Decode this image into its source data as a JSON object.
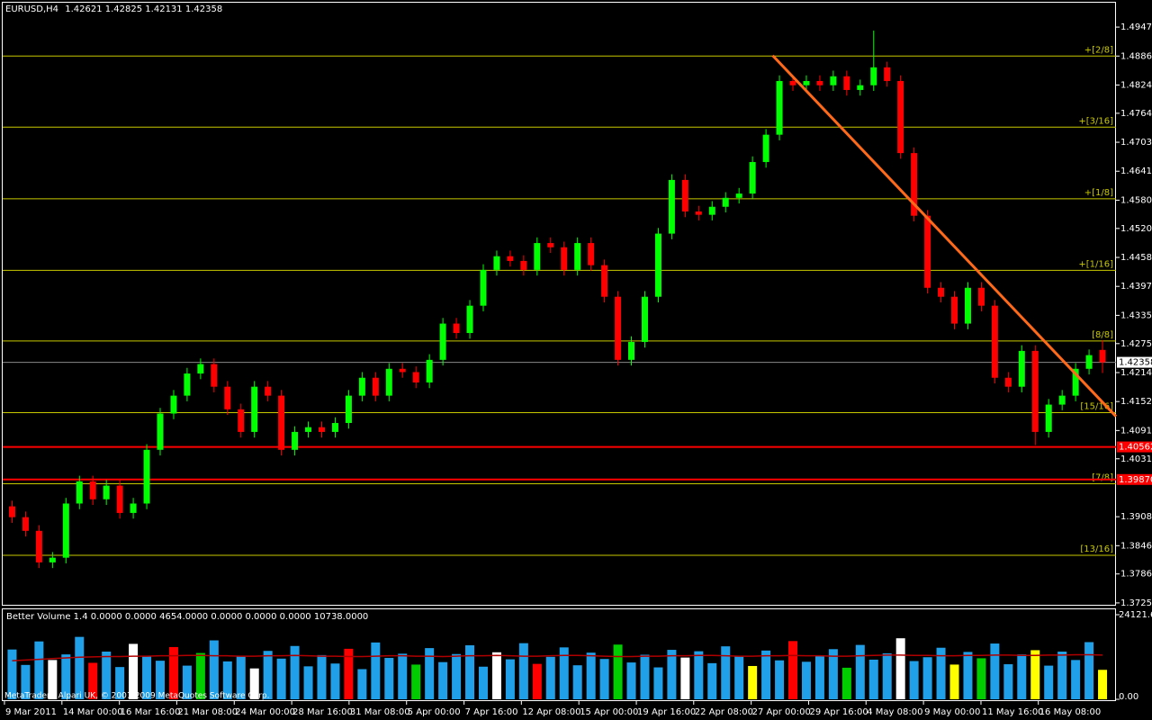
{
  "window": {
    "symbol": "EURUSD,H4",
    "copyright": "MetaTrader - Alpari UK, © 2001-2009 MetaQuotes Software Corp."
  },
  "chart_data": [
    {
      "type": "candlestick",
      "up_color": "#00ff00",
      "down_color": "#ff0000",
      "open": [
        1.393,
        1.3907,
        1.3878,
        1.3811,
        1.3821,
        1.3936,
        1.3983,
        1.3945,
        1.3974,
        1.3916,
        1.3936,
        1.405,
        1.4127,
        1.4165,
        1.4212,
        1.4232,
        1.4184,
        1.4136,
        1.4088,
        1.4184,
        1.4165,
        1.405,
        1.4088,
        1.4098,
        1.4088,
        1.4107,
        1.4165,
        1.4203,
        1.4165,
        1.4222,
        1.4215,
        1.4193,
        1.4241,
        1.4318,
        1.4298,
        1.4356,
        1.4432,
        1.4461,
        1.4451,
        1.4432,
        1.4489,
        1.448,
        1.4432,
        1.4489,
        1.4442,
        1.4375,
        1.4241,
        1.4279,
        1.4375,
        1.4509,
        1.4623,
        1.4556,
        1.4549,
        1.4566,
        1.4585,
        1.4594,
        1.4661,
        1.4719,
        1.4833,
        1.4824,
        1.4833,
        1.4824,
        1.4843,
        1.4814,
        1.4824,
        1.4862,
        1.4833,
        1.468,
        1.4547,
        1.4394,
        1.4375,
        1.4318,
        1.4394,
        1.4356,
        1.4203,
        1.4184,
        1.426,
        1.4088,
        1.4146,
        1.4165,
        1.4222,
        1.42621
      ],
      "high": [
        1.3942,
        1.3919,
        1.389,
        1.3833,
        1.3948,
        1.3995,
        1.3995,
        1.3986,
        1.3986,
        1.3948,
        1.4062,
        1.4139,
        1.4177,
        1.4224,
        1.4244,
        1.4244,
        1.4196,
        1.4148,
        1.4196,
        1.4196,
        1.4177,
        1.41,
        1.411,
        1.411,
        1.4119,
        1.4177,
        1.4215,
        1.4215,
        1.4234,
        1.4234,
        1.4227,
        1.4253,
        1.433,
        1.433,
        1.4368,
        1.4444,
        1.4473,
        1.4473,
        1.4463,
        1.4501,
        1.4501,
        1.4492,
        1.4501,
        1.4501,
        1.4454,
        1.4387,
        1.4291,
        1.4387,
        1.4521,
        1.4635,
        1.4635,
        1.4568,
        1.4578,
        1.4597,
        1.4606,
        1.4673,
        1.4731,
        1.4845,
        1.4845,
        1.4845,
        1.4845,
        1.4855,
        1.4855,
        1.4836,
        1.494,
        1.4874,
        1.4845,
        1.4692,
        1.4559,
        1.4406,
        1.4387,
        1.4406,
        1.4406,
        1.4368,
        1.4215,
        1.4272,
        1.4272,
        1.4158,
        1.4177,
        1.4234,
        1.4263,
        1.42825
      ],
      "low": [
        1.3895,
        1.3866,
        1.3799,
        1.3799,
        1.3809,
        1.3924,
        1.3933,
        1.3933,
        1.3904,
        1.3904,
        1.3924,
        1.4038,
        1.4115,
        1.4153,
        1.42,
        1.4172,
        1.4124,
        1.4076,
        1.4076,
        1.4153,
        1.4038,
        1.4038,
        1.4076,
        1.4076,
        1.4076,
        1.4095,
        1.4153,
        1.4153,
        1.4153,
        1.4203,
        1.4181,
        1.4181,
        1.4229,
        1.4286,
        1.4286,
        1.4344,
        1.442,
        1.4439,
        1.442,
        1.442,
        1.4468,
        1.442,
        1.442,
        1.443,
        1.4363,
        1.4229,
        1.4229,
        1.4267,
        1.4363,
        1.4497,
        1.4544,
        1.4537,
        1.4537,
        1.4554,
        1.4573,
        1.4582,
        1.4649,
        1.4707,
        1.4812,
        1.4812,
        1.4812,
        1.4812,
        1.4802,
        1.4802,
        1.4812,
        1.4821,
        1.4668,
        1.4535,
        1.4382,
        1.4363,
        1.4306,
        1.4306,
        1.4344,
        1.4191,
        1.4172,
        1.4172,
        1.406,
        1.4076,
        1.4134,
        1.4153,
        1.421,
        1.42131
      ],
      "close": [
        1.3907,
        1.3878,
        1.3811,
        1.3821,
        1.3936,
        1.3983,
        1.3945,
        1.3974,
        1.3916,
        1.3936,
        1.405,
        1.4127,
        1.4165,
        1.4212,
        1.4232,
        1.4184,
        1.4136,
        1.4088,
        1.4184,
        1.4165,
        1.405,
        1.4088,
        1.4098,
        1.4088,
        1.4107,
        1.4165,
        1.4203,
        1.4165,
        1.4222,
        1.4215,
        1.4193,
        1.4241,
        1.4318,
        1.4298,
        1.4356,
        1.4432,
        1.4461,
        1.4451,
        1.4432,
        1.4489,
        1.448,
        1.4432,
        1.4489,
        1.4442,
        1.4375,
        1.4241,
        1.4279,
        1.4375,
        1.4509,
        1.4623,
        1.4556,
        1.4549,
        1.4566,
        1.4585,
        1.4594,
        1.4661,
        1.4719,
        1.4833,
        1.4824,
        1.4833,
        1.4824,
        1.4843,
        1.4814,
        1.4824,
        1.4862,
        1.4833,
        1.468,
        1.4547,
        1.4394,
        1.4375,
        1.4318,
        1.4394,
        1.4356,
        1.4203,
        1.4184,
        1.426,
        1.4088,
        1.4146,
        1.4165,
        1.4222,
        1.4251,
        1.42358
      ],
      "xlim": [
        -0.7,
        82
      ],
      "xticks": [
        {
          "value": -0.57,
          "label": "9 Mar 2011"
        },
        {
          "value": 3.7,
          "label": "14 Mar 00:00"
        },
        {
          "value": 7.97,
          "label": "16 Mar 16:00"
        },
        {
          "value": 12.23,
          "label": "21 Mar 08:00"
        },
        {
          "value": 16.5,
          "label": "24 Mar 00:00"
        },
        {
          "value": 20.77,
          "label": "28 Mar 16:00"
        },
        {
          "value": 25.03,
          "label": "31 Mar 08:00"
        },
        {
          "value": 29.3,
          "label": "5 Apr 00:00"
        },
        {
          "value": 33.57,
          "label": "7 Apr 16:00"
        },
        {
          "value": 37.83,
          "label": "12 Apr 08:00"
        },
        {
          "value": 42.1,
          "label": "15 Apr 00:00"
        },
        {
          "value": 46.37,
          "label": "19 Apr 16:00"
        },
        {
          "value": 50.63,
          "label": "22 Apr 08:00"
        },
        {
          "value": 54.9,
          "label": "27 Apr 00:00"
        },
        {
          "value": 59.17,
          "label": "29 Apr 16:00"
        },
        {
          "value": 63.43,
          "label": "4 May 08:00"
        },
        {
          "value": 67.7,
          "label": "9 May 00:00"
        },
        {
          "value": 71.97,
          "label": "11 May 16:00"
        },
        {
          "value": 76.23,
          "label": "16 May 08:00"
        }
      ],
      "ylim": [
        1.3721,
        1.5005
      ],
      "yticks": [
        1.49475,
        {
          "value": 1.4886,
          "label": "1.48860"
        },
        1.48245,
        1.47645,
        {
          "value": 1.4703,
          "label": "1.47030"
        },
        1.46415,
        {
          "value": 1.458,
          "label": "1.45800"
        },
        {
          "value": 1.452,
          "label": "1.45200"
        },
        1.44585,
        {
          "value": 1.4397,
          "label": "1.43970"
        },
        1.43355,
        1.42755,
        {
          "value": 1.4214,
          "label": "1.42140"
        },
        1.41525,
        {
          "value": 1.4091,
          "label": "1.40910"
        },
        {
          "value": 1.4031,
          "label": "1.40310"
        },
        {
          "value": 1.3908,
          "label": "1.39080"
        },
        1.38465,
        1.37865,
        {
          "value": 1.3725,
          "label": "1.37250"
        }
      ],
      "level_color": "#c8c800",
      "levels": [
        {
          "label": "+[2/8]",
          "value": 1.4886
        },
        {
          "label": "+[3/16]",
          "value": 1.4735
        },
        {
          "label": "+[1/8]",
          "value": 1.4583
        },
        {
          "label": "+[1/16]",
          "value": 1.4431
        },
        {
          "label": "[8/8]",
          "value": 1.4281
        },
        {
          "label": "[15/16]",
          "value": 1.4129
        },
        {
          "label": "[7/8]",
          "value": 1.3978
        },
        {
          "label": "[13/16]",
          "value": 1.3826
        }
      ],
      "line_color": "#ff0000",
      "price_lines": [
        1.40562,
        {
          "value": 1.3987,
          "label": "1.39870"
        }
      ],
      "trendline": {
        "color": "#ff6a1a",
        "x": [
          56.5,
          82
        ],
        "y": [
          1.4887,
          1.4121
        ]
      }
    },
    {
      "type": "volume",
      "title": "Better Volume 1.4 0.0000 0.0000 4654.0000 0.0000 0.0000 0.0000 10738.0000",
      "values": [
        14200,
        9800,
        16500,
        11200,
        12800,
        17800,
        10400,
        13600,
        9200,
        15800,
        12400,
        11000,
        14900,
        9600,
        13200,
        16800,
        10800,
        12200,
        8800,
        13800,
        11600,
        15200,
        9400,
        12600,
        10200,
        14400,
        8600,
        16200,
        11800,
        13000,
        9900,
        14600,
        10600,
        12900,
        15400,
        9300,
        13400,
        11400,
        16000,
        10100,
        12100,
        14800,
        9700,
        13300,
        11500,
        15600,
        10500,
        12700,
        9100,
        14100,
        11900,
        13700,
        10300,
        15100,
        12300,
        9500,
        13900,
        11100,
        16600,
        10700,
        12500,
        14300,
        9000,
        15500,
        11300,
        13100,
        17400,
        10900,
        12000,
        14700,
        9900,
        13500,
        11700,
        15900,
        10000,
        12800,
        14000,
        9600,
        13600,
        11200,
        16300,
        8400
      ],
      "colors": [
        "#1fa0e8",
        "#1fa0e8",
        "#1fa0e8",
        "#ffffff",
        "#1fa0e8",
        "#1fa0e8",
        "#ff0000",
        "#1fa0e8",
        "#1fa0e8",
        "#ffffff",
        "#1fa0e8",
        "#1fa0e8",
        "#ff0000",
        "#1fa0e8",
        "#00cc00",
        "#1fa0e8",
        "#1fa0e8",
        "#1fa0e8",
        "#ffffff",
        "#1fa0e8",
        "#1fa0e8",
        "#1fa0e8",
        "#1fa0e8",
        "#1fa0e8",
        "#1fa0e8",
        "#ff0000",
        "#1fa0e8",
        "#1fa0e8",
        "#1fa0e8",
        "#1fa0e8",
        "#00cc00",
        "#1fa0e8",
        "#1fa0e8",
        "#1fa0e8",
        "#1fa0e8",
        "#1fa0e8",
        "#ffffff",
        "#1fa0e8",
        "#1fa0e8",
        "#ff0000",
        "#1fa0e8",
        "#1fa0e8",
        "#1fa0e8",
        "#1fa0e8",
        "#1fa0e8",
        "#00cc00",
        "#1fa0e8",
        "#1fa0e8",
        "#1fa0e8",
        "#1fa0e8",
        "#ffffff",
        "#1fa0e8",
        "#1fa0e8",
        "#1fa0e8",
        "#1fa0e8",
        "#ffff00",
        "#1fa0e8",
        "#1fa0e8",
        "#ff0000",
        "#1fa0e8",
        "#1fa0e8",
        "#1fa0e8",
        "#00cc00",
        "#1fa0e8",
        "#1fa0e8",
        "#1fa0e8",
        "#ffffff",
        "#1fa0e8",
        "#1fa0e8",
        "#1fa0e8",
        "#ffff00",
        "#1fa0e8",
        "#00cc00",
        "#1fa0e8",
        "#1fa0e8",
        "#1fa0e8",
        "#ffff00",
        "#1fa0e8",
        "#1fa0e8",
        "#1fa0e8",
        "#1fa0e8",
        "#ffff00"
      ],
      "ma_color": "#b00000",
      "ma_values": [
        11000,
        11200,
        11400,
        11600,
        11800,
        12000,
        12100,
        12200,
        12200,
        12300,
        12300,
        12400,
        12400,
        12500,
        12500,
        12400,
        12400,
        12300,
        12300,
        12400,
        12400,
        12500,
        12400,
        12300,
        12300,
        12200,
        12200,
        12300,
        12400,
        12400,
        12300,
        12300,
        12200,
        12300,
        12400,
        12400,
        12500,
        12400,
        12300,
        12300,
        12400,
        12500,
        12500,
        12400,
        12300,
        12200,
        12200,
        12300,
        12300,
        12400,
        12400,
        12500,
        12500,
        12400,
        12300,
        12300,
        12400,
        12400,
        12500,
        12400,
        12400,
        12300,
        12300,
        12400,
        12500,
        12600,
        12600,
        12500,
        12500,
        12400,
        12400,
        12500,
        12500,
        12600,
        12600,
        12500,
        12500,
        12600,
        12600,
        12700,
        12700,
        12600
      ],
      "ylim": [
        0,
        24121.65
      ],
      "yticks": [
        24121.65,
        {
          "value": 0,
          "label": "0.00"
        }
      ]
    }
  ]
}
